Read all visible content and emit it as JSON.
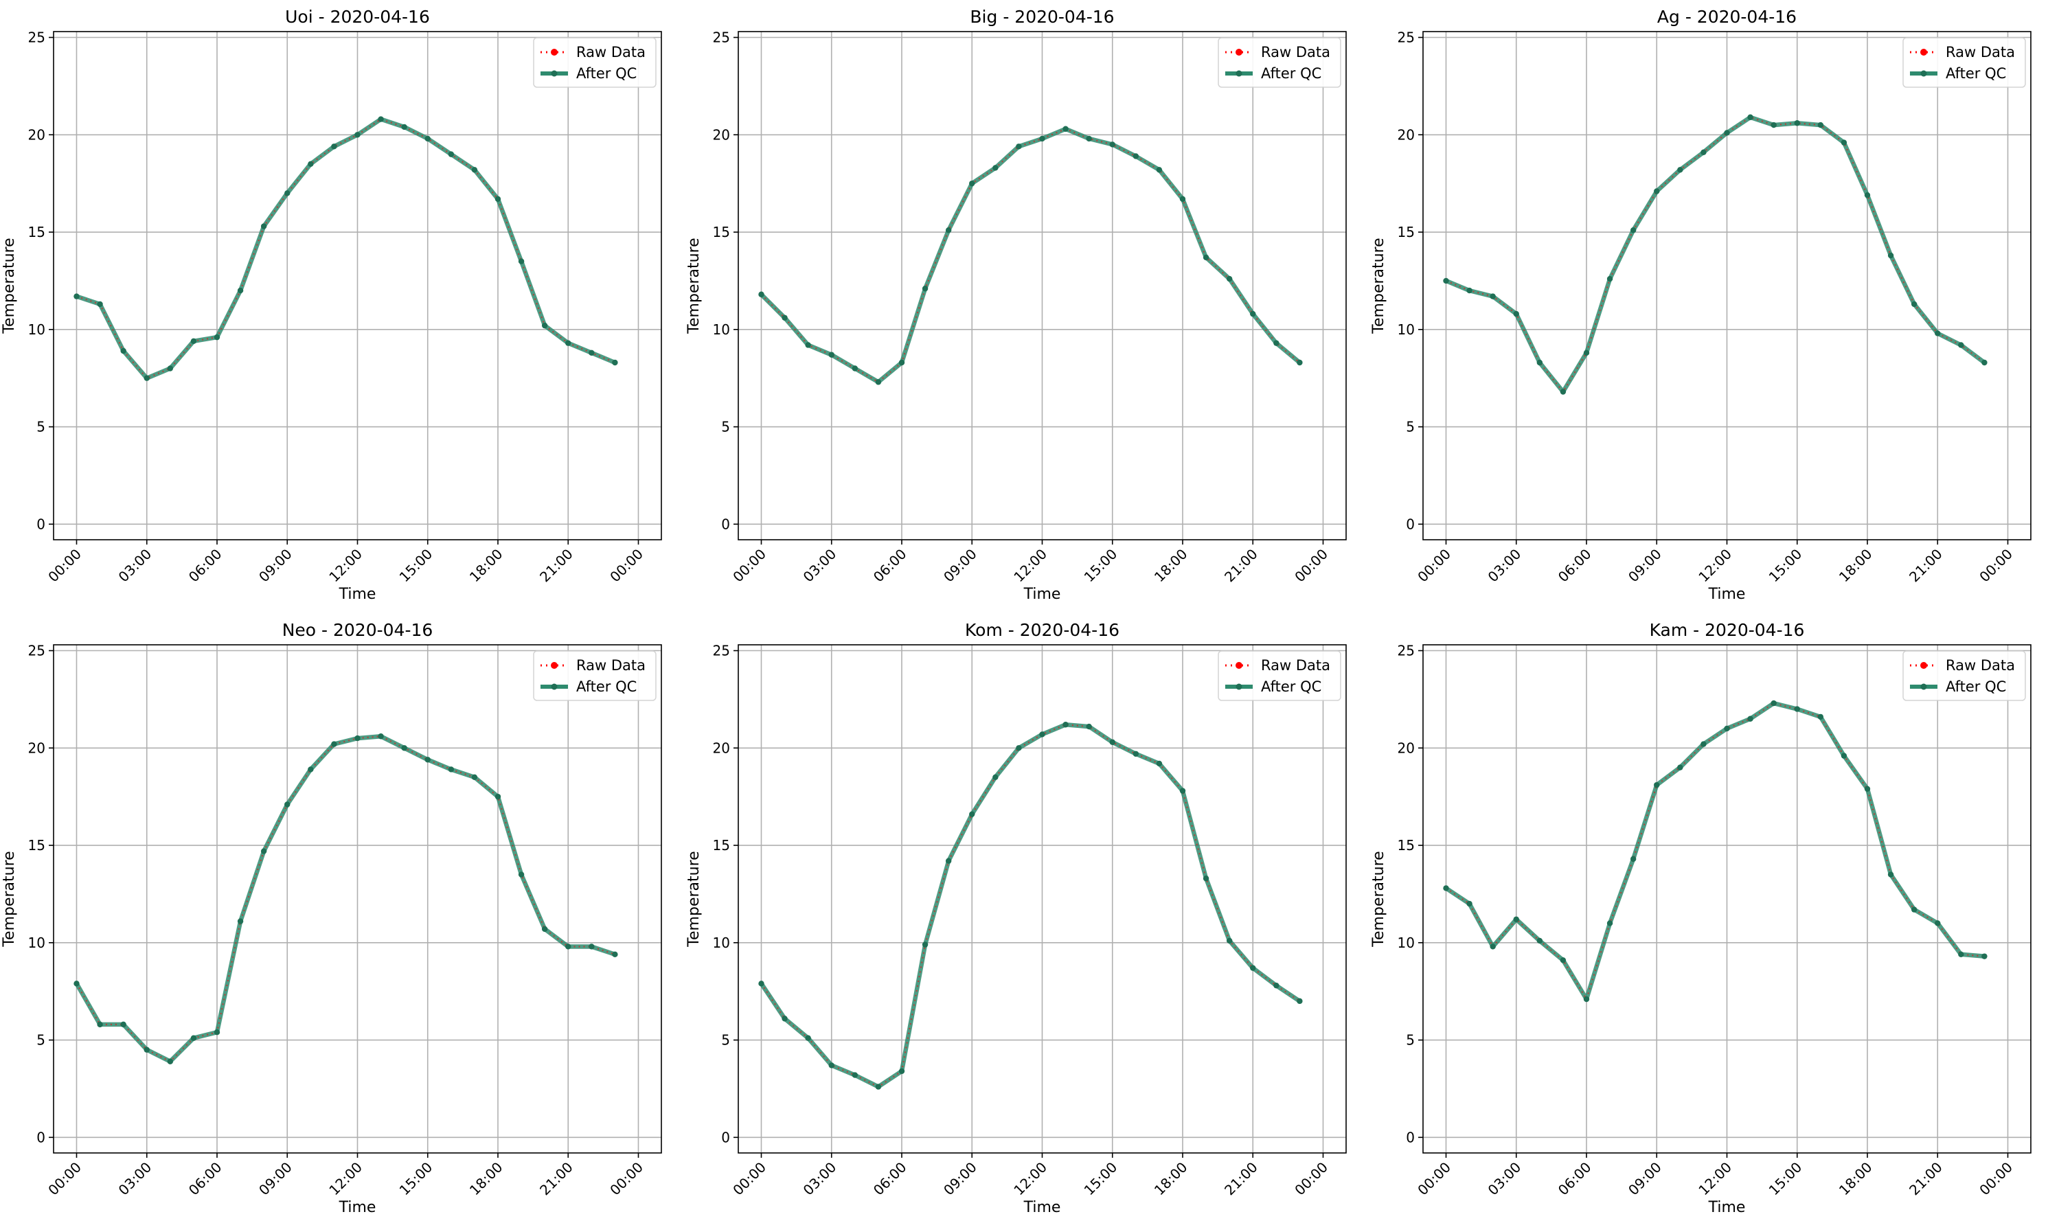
{
  "figure": {
    "xlabel": "Time",
    "ylabel": "Temperature",
    "legend": [
      "Raw Data",
      "After QC"
    ],
    "colors": {
      "raw": "#ff0000",
      "qc": "#2e8b6e",
      "grid": "#b0b0b0",
      "axis": "#000000"
    }
  },
  "chart_data": [
    {
      "type": "line",
      "title": "Uoi - 2020-04-16",
      "xlabel": "Time",
      "ylabel": "Temperature",
      "x": [
        "00:00",
        "01:00",
        "02:00",
        "03:00",
        "04:00",
        "05:00",
        "06:00",
        "07:00",
        "08:00",
        "09:00",
        "10:00",
        "11:00",
        "12:00",
        "13:00",
        "14:00",
        "15:00",
        "16:00",
        "17:00",
        "18:00",
        "19:00",
        "20:00",
        "21:00",
        "22:00",
        "23:00"
      ],
      "x_ticks": [
        "00:00",
        "03:00",
        "06:00",
        "09:00",
        "12:00",
        "15:00",
        "18:00",
        "21:00",
        "00:00"
      ],
      "y_ticks": [
        0,
        5,
        10,
        15,
        20,
        25
      ],
      "ylim": [
        0,
        25
      ],
      "legend": "top-right",
      "grid": true,
      "series": [
        {
          "name": "Raw Data",
          "values": [
            11.7,
            11.3,
            8.9,
            7.5,
            8.0,
            9.4,
            9.6,
            12.0,
            15.3,
            17.0,
            18.5,
            19.4,
            20.0,
            20.8,
            20.4,
            19.8,
            19.0,
            18.2,
            16.7,
            13.5,
            10.2,
            9.3,
            8.8,
            8.3
          ]
        },
        {
          "name": "After QC",
          "values": [
            11.7,
            11.3,
            8.9,
            7.5,
            8.0,
            9.4,
            9.6,
            12.0,
            15.3,
            17.0,
            18.5,
            19.4,
            20.0,
            20.8,
            20.4,
            19.8,
            19.0,
            18.2,
            16.7,
            13.5,
            10.2,
            9.3,
            8.8,
            8.3
          ]
        }
      ]
    },
    {
      "type": "line",
      "title": "Big - 2020-04-16",
      "xlabel": "Time",
      "ylabel": "Temperature",
      "x": [
        "00:00",
        "01:00",
        "02:00",
        "03:00",
        "04:00",
        "05:00",
        "06:00",
        "07:00",
        "08:00",
        "09:00",
        "10:00",
        "11:00",
        "12:00",
        "13:00",
        "14:00",
        "15:00",
        "16:00",
        "17:00",
        "18:00",
        "19:00",
        "20:00",
        "21:00",
        "22:00",
        "23:00"
      ],
      "x_ticks": [
        "00:00",
        "03:00",
        "06:00",
        "09:00",
        "12:00",
        "15:00",
        "18:00",
        "21:00",
        "00:00"
      ],
      "y_ticks": [
        0,
        5,
        10,
        15,
        20,
        25
      ],
      "ylim": [
        0,
        25
      ],
      "legend": "top-right",
      "grid": true,
      "series": [
        {
          "name": "Raw Data",
          "values": [
            11.8,
            10.6,
            9.2,
            8.7,
            8.0,
            7.3,
            8.3,
            12.1,
            15.1,
            17.5,
            18.3,
            19.4,
            19.8,
            20.3,
            19.8,
            19.5,
            18.9,
            18.2,
            16.7,
            13.7,
            12.6,
            10.8,
            9.3,
            8.3
          ]
        },
        {
          "name": "After QC",
          "values": [
            11.8,
            10.6,
            9.2,
            8.7,
            8.0,
            7.3,
            8.3,
            12.1,
            15.1,
            17.5,
            18.3,
            19.4,
            19.8,
            20.3,
            19.8,
            19.5,
            18.9,
            18.2,
            16.7,
            13.7,
            12.6,
            10.8,
            9.3,
            8.3
          ]
        }
      ]
    },
    {
      "type": "line",
      "title": "Ag - 2020-04-16",
      "xlabel": "Time",
      "ylabel": "Temperature",
      "x": [
        "00:00",
        "01:00",
        "02:00",
        "03:00",
        "04:00",
        "05:00",
        "06:00",
        "07:00",
        "08:00",
        "09:00",
        "10:00",
        "11:00",
        "12:00",
        "13:00",
        "14:00",
        "15:00",
        "16:00",
        "17:00",
        "18:00",
        "19:00",
        "20:00",
        "21:00",
        "22:00",
        "23:00"
      ],
      "x_ticks": [
        "00:00",
        "03:00",
        "06:00",
        "09:00",
        "12:00",
        "15:00",
        "18:00",
        "21:00",
        "00:00"
      ],
      "y_ticks": [
        0,
        5,
        10,
        15,
        20,
        25
      ],
      "ylim": [
        0,
        25
      ],
      "legend": "top-right",
      "grid": true,
      "series": [
        {
          "name": "Raw Data",
          "values": [
            12.5,
            12.0,
            11.7,
            10.8,
            8.3,
            6.8,
            8.8,
            12.6,
            15.1,
            17.1,
            18.2,
            19.1,
            20.1,
            20.9,
            20.5,
            20.6,
            20.5,
            19.6,
            16.9,
            13.8,
            11.3,
            9.8,
            9.2,
            8.3
          ]
        },
        {
          "name": "After QC",
          "values": [
            12.5,
            12.0,
            11.7,
            10.8,
            8.3,
            6.8,
            8.8,
            12.6,
            15.1,
            17.1,
            18.2,
            19.1,
            20.1,
            20.9,
            20.5,
            20.6,
            20.5,
            19.6,
            16.9,
            13.8,
            11.3,
            9.8,
            9.2,
            8.3
          ]
        }
      ]
    },
    {
      "type": "line",
      "title": "Neo - 2020-04-16",
      "xlabel": "Time",
      "ylabel": "Temperature",
      "x": [
        "00:00",
        "01:00",
        "02:00",
        "03:00",
        "04:00",
        "05:00",
        "06:00",
        "07:00",
        "08:00",
        "09:00",
        "10:00",
        "11:00",
        "12:00",
        "13:00",
        "14:00",
        "15:00",
        "16:00",
        "17:00",
        "18:00",
        "19:00",
        "20:00",
        "21:00",
        "22:00",
        "23:00"
      ],
      "x_ticks": [
        "00:00",
        "03:00",
        "06:00",
        "09:00",
        "12:00",
        "15:00",
        "18:00",
        "21:00",
        "00:00"
      ],
      "y_ticks": [
        0,
        5,
        10,
        15,
        20,
        25
      ],
      "ylim": [
        0,
        25
      ],
      "legend": "top-right",
      "grid": true,
      "series": [
        {
          "name": "Raw Data",
          "values": [
            7.9,
            5.8,
            5.8,
            4.5,
            3.9,
            5.1,
            5.4,
            11.1,
            14.7,
            17.1,
            18.9,
            20.2,
            20.5,
            20.6,
            20.0,
            19.4,
            18.9,
            18.5,
            17.5,
            13.5,
            10.7,
            9.8,
            9.8,
            9.4
          ]
        },
        {
          "name": "After QC",
          "values": [
            7.9,
            5.8,
            5.8,
            4.5,
            3.9,
            5.1,
            5.4,
            11.1,
            14.7,
            17.1,
            18.9,
            20.2,
            20.5,
            20.6,
            20.0,
            19.4,
            18.9,
            18.5,
            17.5,
            13.5,
            10.7,
            9.8,
            9.8,
            9.4
          ]
        }
      ]
    },
    {
      "type": "line",
      "title": "Kom - 2020-04-16",
      "xlabel": "Time",
      "ylabel": "Temperature",
      "x": [
        "00:00",
        "01:00",
        "02:00",
        "03:00",
        "04:00",
        "05:00",
        "06:00",
        "07:00",
        "08:00",
        "09:00",
        "10:00",
        "11:00",
        "12:00",
        "13:00",
        "14:00",
        "15:00",
        "16:00",
        "17:00",
        "18:00",
        "19:00",
        "20:00",
        "21:00",
        "22:00",
        "23:00"
      ],
      "x_ticks": [
        "00:00",
        "03:00",
        "06:00",
        "09:00",
        "12:00",
        "15:00",
        "18:00",
        "21:00",
        "00:00"
      ],
      "y_ticks": [
        0,
        5,
        10,
        15,
        20,
        25
      ],
      "ylim": [
        0,
        25
      ],
      "legend": "top-right",
      "grid": true,
      "series": [
        {
          "name": "Raw Data",
          "values": [
            7.9,
            6.1,
            5.1,
            3.7,
            3.2,
            2.6,
            3.4,
            9.9,
            14.2,
            16.6,
            18.5,
            20.0,
            20.7,
            21.2,
            21.1,
            20.3,
            19.7,
            19.2,
            17.8,
            13.3,
            10.1,
            8.7,
            7.8,
            7.0
          ]
        },
        {
          "name": "After QC",
          "values": [
            7.9,
            6.1,
            5.1,
            3.7,
            3.2,
            2.6,
            3.4,
            9.9,
            14.2,
            16.6,
            18.5,
            20.0,
            20.7,
            21.2,
            21.1,
            20.3,
            19.7,
            19.2,
            17.8,
            13.3,
            10.1,
            8.7,
            7.8,
            7.0
          ]
        }
      ]
    },
    {
      "type": "line",
      "title": "Kam - 2020-04-16",
      "xlabel": "Time",
      "ylabel": "Temperature",
      "x": [
        "00:00",
        "01:00",
        "02:00",
        "03:00",
        "04:00",
        "05:00",
        "06:00",
        "07:00",
        "08:00",
        "09:00",
        "10:00",
        "11:00",
        "12:00",
        "13:00",
        "14:00",
        "15:00",
        "16:00",
        "17:00",
        "18:00",
        "19:00",
        "20:00",
        "21:00",
        "22:00",
        "23:00"
      ],
      "x_ticks": [
        "00:00",
        "03:00",
        "06:00",
        "09:00",
        "12:00",
        "15:00",
        "18:00",
        "21:00",
        "00:00"
      ],
      "y_ticks": [
        0,
        5,
        10,
        15,
        20,
        25
      ],
      "ylim": [
        0,
        25
      ],
      "legend": "top-right",
      "grid": true,
      "series": [
        {
          "name": "Raw Data",
          "values": [
            12.8,
            12.0,
            9.8,
            11.2,
            10.1,
            9.1,
            7.1,
            11.0,
            14.3,
            18.1,
            19.0,
            20.2,
            21.0,
            21.5,
            22.3,
            22.0,
            21.6,
            19.6,
            17.9,
            13.5,
            11.7,
            11.0,
            9.4,
            9.3
          ]
        },
        {
          "name": "After QC",
          "values": [
            12.8,
            12.0,
            9.8,
            11.2,
            10.1,
            9.1,
            7.1,
            11.0,
            14.3,
            18.1,
            19.0,
            20.2,
            21.0,
            21.5,
            22.3,
            22.0,
            21.6,
            19.6,
            17.9,
            13.5,
            11.7,
            11.0,
            9.4,
            9.3
          ]
        }
      ]
    }
  ]
}
